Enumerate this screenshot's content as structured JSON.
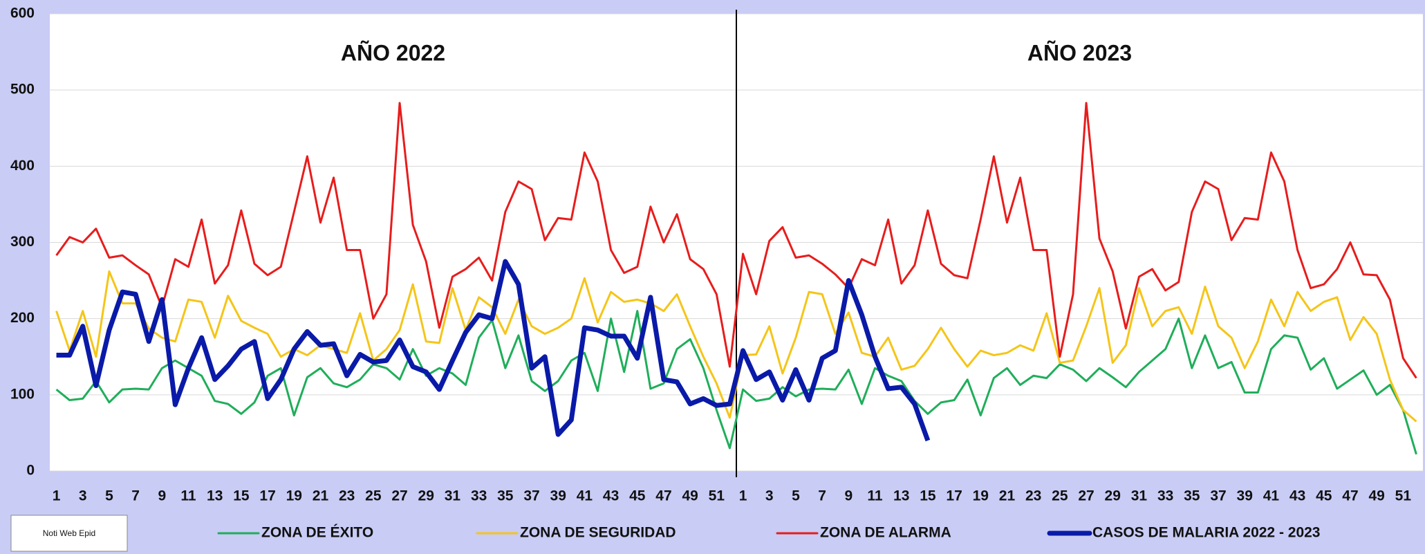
{
  "chart_data": {
    "type": "line",
    "annotations": [
      "AÑO 2022",
      "AÑO 2023"
    ],
    "source": "Noti Web Epid",
    "categories": [
      "1",
      null,
      "3",
      null,
      "5",
      null,
      "7",
      null,
      "9",
      null,
      "11",
      null,
      "13",
      null,
      "15",
      null,
      "17",
      null,
      "19",
      null,
      "21",
      null,
      "23",
      null,
      "25",
      null,
      "27",
      null,
      "29",
      null,
      "31",
      null,
      "33",
      null,
      "35",
      null,
      "37",
      null,
      "39",
      null,
      "41",
      null,
      "43",
      null,
      "45",
      null,
      "47",
      null,
      "49",
      null,
      "51",
      null,
      "1",
      null,
      "3",
      null,
      "5",
      null,
      "7",
      null,
      "9",
      null,
      "11",
      null,
      "13",
      null,
      "15",
      null,
      "17",
      null,
      "19",
      null,
      "21",
      null,
      "23",
      null,
      "25",
      null,
      "27",
      null,
      "29",
      null,
      "31",
      null,
      "33",
      null,
      "35",
      null,
      "37",
      null,
      "39",
      null,
      "41",
      null,
      "43",
      null,
      "45",
      null,
      "47",
      null,
      "49",
      null,
      "51",
      null
    ],
    "ylim": [
      0,
      600
    ],
    "yticks": [
      0,
      100,
      200,
      300,
      400,
      500,
      600
    ],
    "grid": true,
    "series": [
      {
        "name": "ZONA DE ÉXITO",
        "color": "#1fae5a",
        "width": 3,
        "values": [
          107,
          93,
          95,
          118,
          90,
          107,
          108,
          107,
          135,
          145,
          135,
          125,
          92,
          88,
          75,
          90,
          125,
          135,
          73,
          123,
          135,
          115,
          110,
          120,
          140,
          135,
          120,
          160,
          125,
          135,
          128,
          113,
          175,
          198,
          135,
          178,
          118,
          105,
          118,
          145,
          155,
          105,
          200,
          130,
          210,
          108,
          115,
          160,
          173,
          135,
          80,
          30,
          107,
          92,
          95,
          110,
          98,
          107,
          108,
          107,
          133,
          88,
          135,
          125,
          118,
          92,
          75,
          90,
          93,
          120,
          73,
          122,
          135,
          113,
          125,
          122,
          140,
          133,
          118,
          135,
          123,
          110,
          130,
          145,
          160,
          200,
          135,
          178,
          135,
          143,
          103,
          103,
          160,
          178,
          175,
          133,
          148,
          108,
          120,
          132,
          100,
          113,
          80,
          22
        ]
      },
      {
        "name": "ZONA DE SEGURIDAD",
        "color": "#f5c518",
        "width": 3,
        "values": [
          210,
          158,
          210,
          150,
          262,
          220,
          220,
          187,
          175,
          170,
          225,
          222,
          175,
          230,
          197,
          188,
          180,
          150,
          160,
          152,
          165,
          160,
          155,
          207,
          145,
          160,
          185,
          245,
          170,
          168,
          240,
          185,
          228,
          215,
          180,
          225,
          190,
          180,
          188,
          200,
          253,
          195,
          235,
          222,
          225,
          220,
          210,
          232,
          190,
          150,
          115,
          70,
          152,
          153,
          190,
          128,
          175,
          235,
          232,
          180,
          208,
          155,
          150,
          175,
          133,
          138,
          160,
          188,
          160,
          137,
          158,
          152,
          155,
          165,
          158,
          207,
          142,
          145,
          190,
          240,
          142,
          165,
          240,
          190,
          210,
          215,
          180,
          242,
          190,
          175,
          135,
          170,
          225,
          190,
          235,
          210,
          222,
          228,
          172,
          202,
          180,
          120,
          80,
          65
        ]
      },
      {
        "name": "ZONA DE ALARMA",
        "color": "#e81c1c",
        "width": 3,
        "values": [
          283,
          307,
          300,
          318,
          280,
          283,
          270,
          258,
          215,
          278,
          268,
          330,
          246,
          270,
          342,
          272,
          257,
          268,
          340,
          413,
          326,
          385,
          290,
          290,
          200,
          232,
          483,
          323,
          275,
          188,
          255,
          265,
          280,
          250,
          340,
          380,
          370,
          303,
          332,
          330,
          418,
          380,
          290,
          260,
          268,
          347,
          300,
          337,
          278,
          265,
          232,
          137,
          285,
          232,
          302,
          320,
          280,
          283,
          272,
          258,
          240,
          278,
          270,
          330,
          246,
          270,
          342,
          272,
          257,
          253,
          330,
          413,
          326,
          385,
          290,
          290,
          150,
          232,
          483,
          305,
          262,
          187,
          255,
          265,
          237,
          248,
          340,
          380,
          370,
          303,
          332,
          330,
          418,
          380,
          290,
          240,
          245,
          265,
          300,
          258,
          257,
          225,
          148,
          122
        ]
      },
      {
        "name": "CASOS DE MALARIA 2022 - 2023",
        "color": "#0a1aa8",
        "width": 7,
        "values": [
          152,
          152,
          190,
          112,
          185,
          235,
          232,
          170,
          225,
          87,
          135,
          175,
          120,
          138,
          160,
          170,
          95,
          120,
          160,
          183,
          165,
          167,
          125,
          153,
          143,
          145,
          172,
          137,
          130,
          107,
          145,
          182,
          205,
          200,
          275,
          245,
          135,
          150,
          48,
          67,
          188,
          185,
          177,
          177,
          148,
          228,
          120,
          117,
          88,
          95,
          86,
          88,
          158,
          120,
          130,
          93,
          133,
          93,
          148,
          158,
          250,
          205,
          150,
          108,
          110,
          88,
          40,
          null,
          null,
          null,
          null,
          null,
          null,
          null,
          null,
          null,
          null,
          null,
          null,
          null,
          null,
          null,
          null,
          null,
          null,
          null,
          null,
          null,
          null,
          null,
          null,
          null,
          null,
          null,
          null,
          null,
          null,
          null,
          null,
          null,
          null,
          null,
          null,
          null
        ]
      }
    ]
  }
}
